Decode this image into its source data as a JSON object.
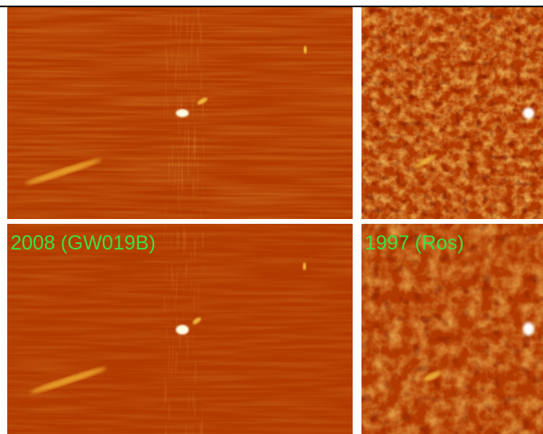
{
  "header": {
    "caption": ""
  },
  "panels": [
    {
      "id": "p-tl",
      "label": "",
      "style": "wide",
      "epoch_hint": "top-left"
    },
    {
      "id": "p-tr",
      "label": "",
      "style": "narrow",
      "epoch_hint": "top-right"
    },
    {
      "id": "p-bl",
      "label": "2008 (GW019B)",
      "style": "wide",
      "epoch_hint": "bottom-left"
    },
    {
      "id": "p-br",
      "label": "1997 (Ros)",
      "style": "narrow",
      "epoch_hint": "bottom-right"
    }
  ],
  "colors": {
    "background": "#b23a00",
    "label": "#3ee03e",
    "caption": "#1a1aff",
    "separator": "#ffffff"
  }
}
